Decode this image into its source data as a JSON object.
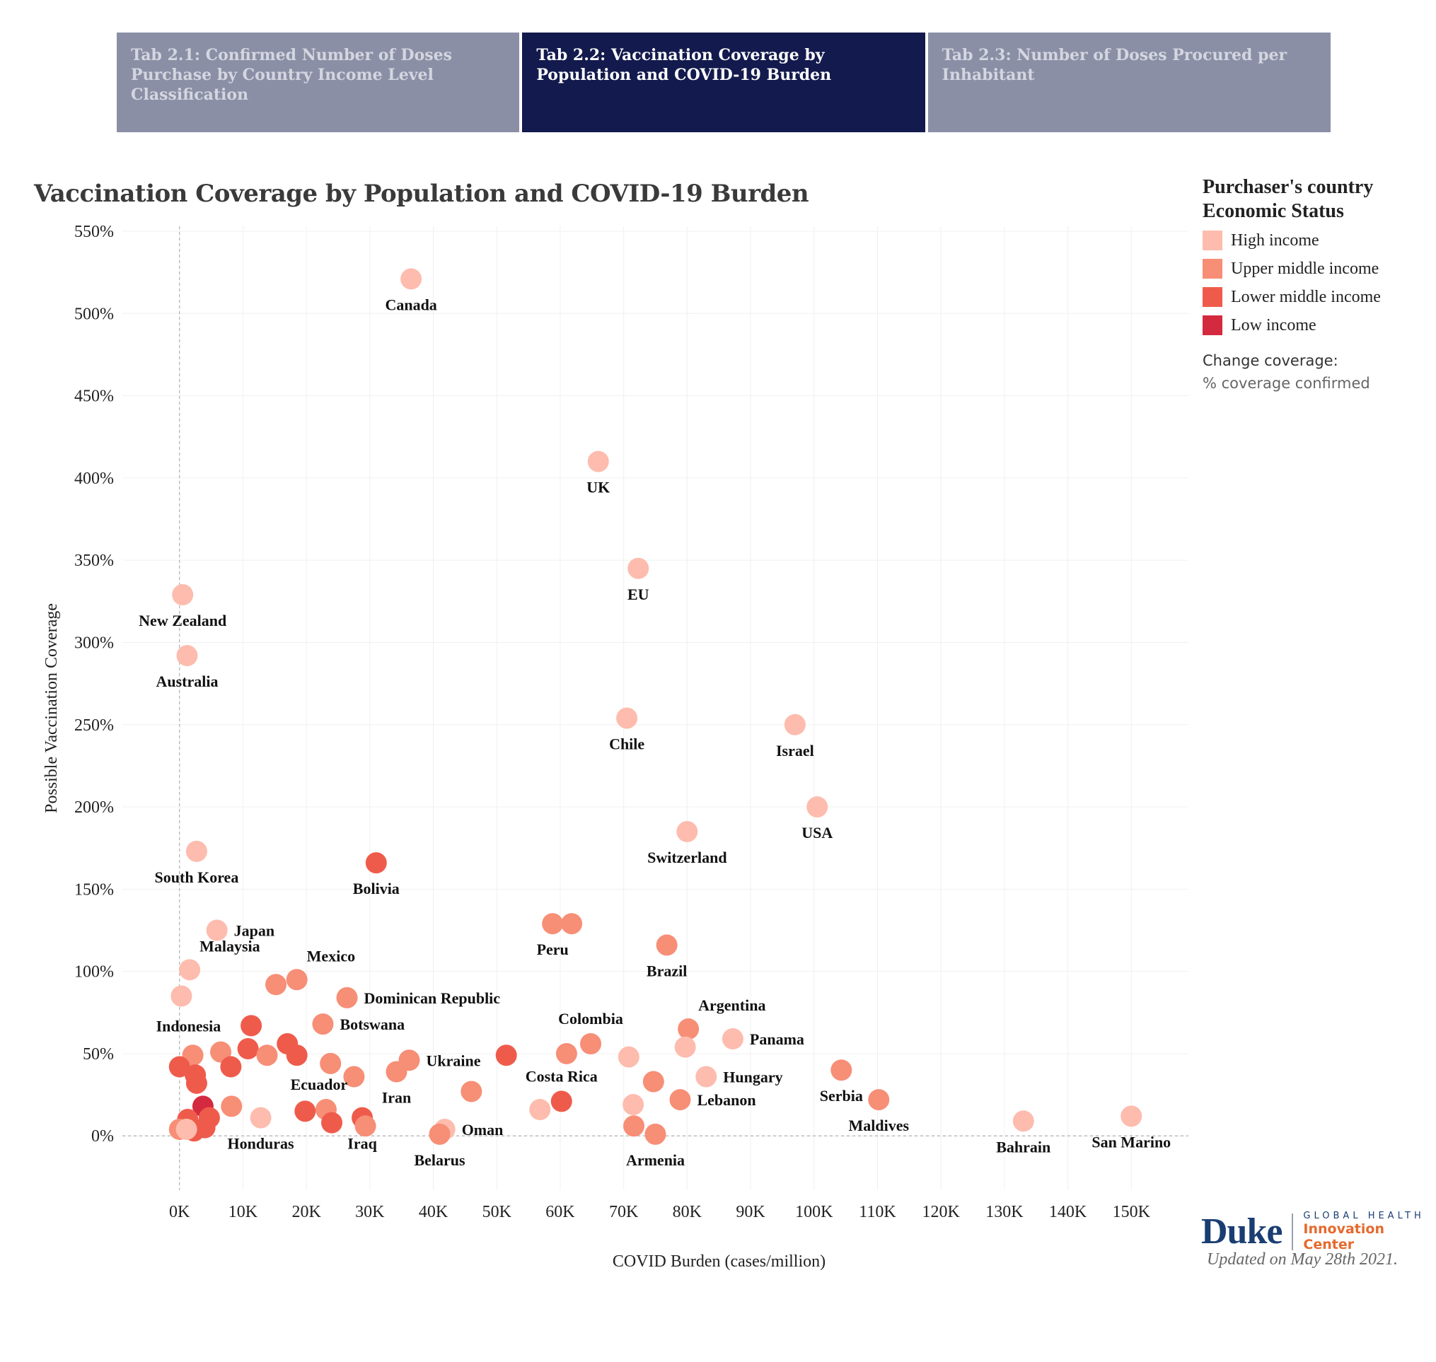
{
  "tabs": [
    {
      "label": "Tab 2.1: Confirmed Number of Doses Purchase by Country Income Level Classification",
      "active": false
    },
    {
      "label": "Tab 2.2: Vaccination Coverage by Population and COVID-19 Burden",
      "active": true
    },
    {
      "label": "Tab 2.3: Number of Doses Procured per Inhabitant",
      "active": false
    }
  ],
  "legend": {
    "title_line1": "Purchaser's country",
    "title_line2": "Economic  Status",
    "items": [
      {
        "label": "High income",
        "color": "#fdbcae"
      },
      {
        "label": "Upper middle income",
        "color": "#f78e76"
      },
      {
        "label": "Lower middle income",
        "color": "#ef5b4b"
      },
      {
        "label": "Low income",
        "color": "#d42a40"
      }
    ]
  },
  "control": {
    "label": "Change coverage:",
    "value": "% coverage confirmed"
  },
  "footer": {
    "logo_word": "Duke",
    "logo_line1": "GLOBAL HEALTH",
    "logo_line2": "Innovation Center",
    "updated": "Updated on May 28th 2021."
  },
  "chart_data": {
    "type": "scatter",
    "title": "Vaccination Coverage by Population and COVID-19 Burden",
    "xlabel": "COVID Burden (cases/million)",
    "ylabel": "Possible Vaccination Coverage",
    "xlim": [
      -9000,
      159000
    ],
    "ylim": [
      -33,
      553
    ],
    "xticks": [
      0,
      10000,
      20000,
      30000,
      40000,
      50000,
      60000,
      70000,
      80000,
      90000,
      100000,
      110000,
      120000,
      130000,
      140000,
      150000
    ],
    "xtick_labels": [
      "0K",
      "10K",
      "20K",
      "30K",
      "40K",
      "50K",
      "60K",
      "70K",
      "80K",
      "90K",
      "100K",
      "110K",
      "120K",
      "130K",
      "140K",
      "150K"
    ],
    "yticks": [
      0,
      50,
      100,
      150,
      200,
      250,
      300,
      350,
      400,
      450,
      500,
      550
    ],
    "ytick_labels": [
      "0%",
      "50%",
      "100%",
      "150%",
      "200%",
      "250%",
      "300%",
      "350%",
      "400%",
      "450%",
      "500%",
      "550%"
    ],
    "grid": true,
    "legend_position": "right",
    "colors": {
      "High income": "#fdbcae",
      "Upper middle income": "#f78e76",
      "Lower middle income": "#ef5b4b",
      "Low income": "#d42a40"
    },
    "points": [
      {
        "x": 36500,
        "y": 521,
        "income": "High income",
        "label": "Canada",
        "lpos": "below"
      },
      {
        "x": 66000,
        "y": 410,
        "income": "High income",
        "label": "UK",
        "lpos": "below"
      },
      {
        "x": 72300,
        "y": 345,
        "income": "High income",
        "label": "EU",
        "lpos": "below"
      },
      {
        "x": 500,
        "y": 329,
        "income": "High income",
        "label": "New Zealand",
        "lpos": "below"
      },
      {
        "x": 1200,
        "y": 292,
        "income": "High income",
        "label": "Australia",
        "lpos": "below"
      },
      {
        "x": 70500,
        "y": 254,
        "income": "High income",
        "label": "Chile",
        "lpos": "below"
      },
      {
        "x": 97000,
        "y": 250,
        "income": "High income",
        "label": "Israel",
        "lpos": "below"
      },
      {
        "x": 100500,
        "y": 200,
        "income": "High income",
        "label": "USA",
        "lpos": "below"
      },
      {
        "x": 80000,
        "y": 185,
        "income": "High income",
        "label": "Switzerland",
        "lpos": "below"
      },
      {
        "x": 2700,
        "y": 173,
        "income": "High income",
        "label": "South Korea",
        "lpos": "below"
      },
      {
        "x": 31000,
        "y": 166,
        "income": "Lower middle income",
        "label": "Bolivia",
        "lpos": "below"
      },
      {
        "x": 5900,
        "y": 125,
        "income": "High income",
        "label": "Japan",
        "lpos": "right"
      },
      {
        "x": 58800,
        "y": 129,
        "income": "Upper middle income",
        "label": "Peru",
        "lpos": "below"
      },
      {
        "x": 61800,
        "y": 129,
        "income": "Upper middle income",
        "label": "",
        "lpos": "none"
      },
      {
        "x": 76800,
        "y": 116,
        "income": "Upper middle income",
        "label": "Brazil",
        "lpos": "below"
      },
      {
        "x": 1600,
        "y": 101,
        "income": "High income",
        "label": "Malaysia",
        "lpos": "upright"
      },
      {
        "x": 18500,
        "y": 95,
        "income": "Upper middle income",
        "label": "Mexico",
        "lpos": "upright"
      },
      {
        "x": 15200,
        "y": 92,
        "income": "Upper middle income",
        "label": "",
        "lpos": "none"
      },
      {
        "x": 26400,
        "y": 84,
        "income": "Upper middle income",
        "label": "Dominican Republic",
        "lpos": "right"
      },
      {
        "x": 300,
        "y": 85,
        "income": "High income",
        "label": "Indonesia",
        "lpos": "belowright"
      },
      {
        "x": 22600,
        "y": 68,
        "income": "Upper middle income",
        "label": "Botswana",
        "lpos": "right"
      },
      {
        "x": 11300,
        "y": 67,
        "income": "Lower middle income",
        "label": "",
        "lpos": "none"
      },
      {
        "x": 80200,
        "y": 65,
        "income": "Upper middle income",
        "label": "Argentina",
        "lpos": "upright"
      },
      {
        "x": 87200,
        "y": 59,
        "income": "High income",
        "label": "Panama",
        "lpos": "right"
      },
      {
        "x": 64800,
        "y": 56,
        "income": "Upper middle income",
        "label": "Colombia",
        "lpos": "up"
      },
      {
        "x": 79700,
        "y": 54,
        "income": "High income",
        "label": "",
        "lpos": "none"
      },
      {
        "x": 17000,
        "y": 56,
        "income": "Lower middle income",
        "label": "",
        "lpos": "none"
      },
      {
        "x": 10800,
        "y": 53,
        "income": "Lower middle income",
        "label": "",
        "lpos": "none"
      },
      {
        "x": 6500,
        "y": 51,
        "income": "Upper middle income",
        "label": "",
        "lpos": "none"
      },
      {
        "x": 2100,
        "y": 49,
        "income": "Upper middle income",
        "label": "",
        "lpos": "none"
      },
      {
        "x": 13800,
        "y": 49,
        "income": "Upper middle income",
        "label": "",
        "lpos": "none"
      },
      {
        "x": 18500,
        "y": 49,
        "income": "Lower middle income",
        "label": "",
        "lpos": "none"
      },
      {
        "x": 51500,
        "y": 49,
        "income": "Lower middle income",
        "label": "",
        "lpos": "none"
      },
      {
        "x": 61000,
        "y": 50,
        "income": "Upper middle income",
        "label": "",
        "lpos": "none"
      },
      {
        "x": 70800,
        "y": 48,
        "income": "High income",
        "label": "",
        "lpos": "none"
      },
      {
        "x": 36200,
        "y": 46,
        "income": "Upper middle income",
        "label": "Ukraine",
        "lpos": "right"
      },
      {
        "x": 23800,
        "y": 44,
        "income": "Upper middle income",
        "label": "",
        "lpos": "none"
      },
      {
        "x": 0,
        "y": 42,
        "income": "Lower middle income",
        "label": "",
        "lpos": "none"
      },
      {
        "x": 8100,
        "y": 42,
        "income": "Lower middle income",
        "label": "",
        "lpos": "none"
      },
      {
        "x": 104300,
        "y": 40,
        "income": "Upper middle income",
        "label": "Serbia",
        "lpos": "below"
      },
      {
        "x": 34200,
        "y": 39,
        "income": "Upper middle income",
        "label": "Iran",
        "lpos": "below"
      },
      {
        "x": 2500,
        "y": 37,
        "income": "Lower middle income",
        "label": "",
        "lpos": "none"
      },
      {
        "x": 27500,
        "y": 36,
        "income": "Upper middle income",
        "label": "",
        "lpos": "none"
      },
      {
        "x": 83000,
        "y": 36,
        "income": "High income",
        "label": "Hungary",
        "lpos": "right"
      },
      {
        "x": 74700,
        "y": 33,
        "income": "Upper middle income",
        "label": "",
        "lpos": "none"
      },
      {
        "x": 2700,
        "y": 32,
        "income": "Lower middle income",
        "label": "",
        "lpos": "none"
      },
      {
        "x": 46000,
        "y": 27,
        "income": "Upper middle income",
        "label": "",
        "lpos": "none"
      },
      {
        "x": 78900,
        "y": 22,
        "income": "Upper middle income",
        "label": "Lebanon",
        "lpos": "right"
      },
      {
        "x": 110200,
        "y": 22,
        "income": "Upper middle income",
        "label": "Maldives",
        "lpos": "below"
      },
      {
        "x": 60200,
        "y": 21,
        "income": "Lower middle income",
        "label": "Costa Rica",
        "lpos": "up"
      },
      {
        "x": 71500,
        "y": 19,
        "income": "High income",
        "label": "",
        "lpos": "none"
      },
      {
        "x": 3700,
        "y": 18,
        "income": "Low income",
        "label": "",
        "lpos": "none"
      },
      {
        "x": 8200,
        "y": 18,
        "income": "Upper middle income",
        "label": "",
        "lpos": "none"
      },
      {
        "x": 56800,
        "y": 16,
        "income": "High income",
        "label": "",
        "lpos": "none"
      },
      {
        "x": 23100,
        "y": 16,
        "income": "Upper middle income",
        "label": "Ecuador",
        "lpos": "upleft"
      },
      {
        "x": 19800,
        "y": 15,
        "income": "Lower middle income",
        "label": "",
        "lpos": "none"
      },
      {
        "x": 12800,
        "y": 11,
        "income": "High income",
        "label": "Honduras",
        "lpos": "below"
      },
      {
        "x": 28800,
        "y": 11,
        "income": "Lower middle income",
        "label": "Iraq",
        "lpos": "below"
      },
      {
        "x": 4700,
        "y": 11,
        "income": "Lower middle income",
        "label": "",
        "lpos": "none"
      },
      {
        "x": 1300,
        "y": 10,
        "income": "Lower middle income",
        "label": "",
        "lpos": "none"
      },
      {
        "x": 150000,
        "y": 12,
        "income": "High income",
        "label": "San Marino",
        "lpos": "below"
      },
      {
        "x": 133000,
        "y": 9,
        "income": "High income",
        "label": "Bahrain",
        "lpos": "below"
      },
      {
        "x": 24000,
        "y": 8,
        "income": "Lower middle income",
        "label": "",
        "lpos": "none"
      },
      {
        "x": 29300,
        "y": 6,
        "income": "Upper middle income",
        "label": "",
        "lpos": "none"
      },
      {
        "x": 71600,
        "y": 6,
        "income": "Upper middle income",
        "label": "",
        "lpos": "none"
      },
      {
        "x": 4000,
        "y": 5,
        "income": "Lower middle income",
        "label": "",
        "lpos": "none"
      },
      {
        "x": 0,
        "y": 4,
        "income": "Upper middle income",
        "label": "",
        "lpos": "none"
      },
      {
        "x": 41800,
        "y": 4,
        "income": "High income",
        "label": "Oman",
        "lpos": "right"
      },
      {
        "x": 2300,
        "y": 3,
        "income": "Lower middle income",
        "label": "",
        "lpos": "none"
      },
      {
        "x": 1100,
        "y": 4,
        "income": "High income",
        "label": "",
        "lpos": "none"
      },
      {
        "x": 41000,
        "y": 1,
        "income": "Upper middle income",
        "label": "Belarus",
        "lpos": "below"
      },
      {
        "x": 75000,
        "y": 1,
        "income": "Upper middle income",
        "label": "Armenia",
        "lpos": "below"
      }
    ]
  }
}
